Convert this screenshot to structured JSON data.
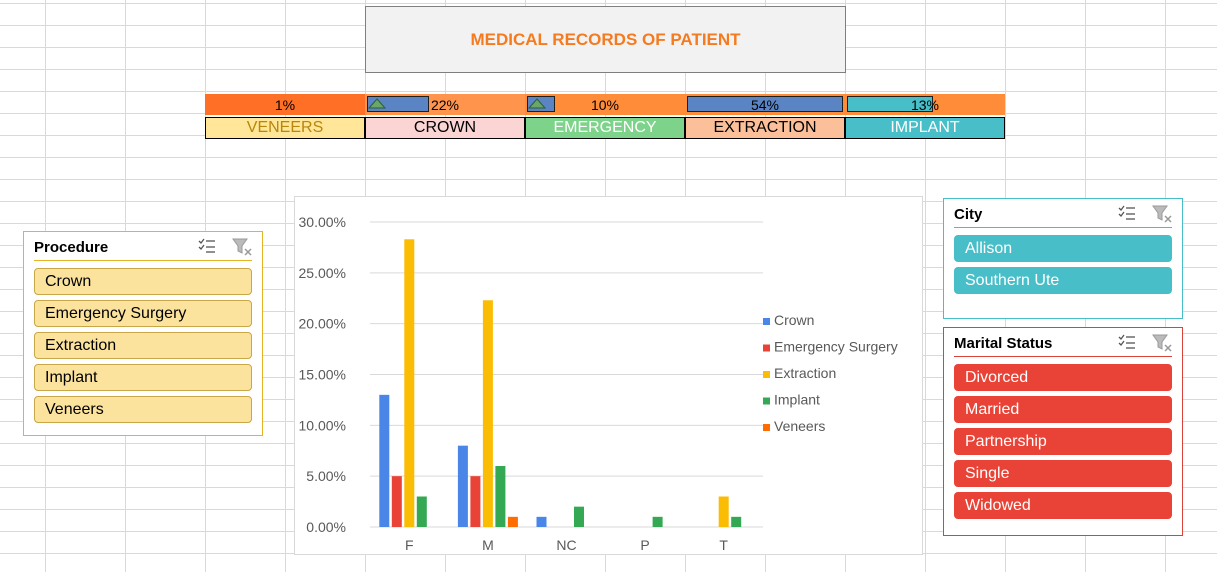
{
  "title": "MEDICAL RECORDS OF PATIENT",
  "kpis": [
    {
      "percent_label": "1%",
      "bar_fraction": 0,
      "label": "VENEERS",
      "row_bg": "#ff6f26",
      "label_bg": "#ffe699",
      "label_color": "#b8860b",
      "trend_icon": false
    },
    {
      "percent_label": "22%",
      "bar_fraction": 0.4,
      "label": "CROWN",
      "row_bg": "#ff944d",
      "label_bg": "#fbd4d4",
      "label_color": "#000000",
      "trend_icon": true
    },
    {
      "percent_label": "10%",
      "bar_fraction": 0.18,
      "label": "EMERGENCY",
      "row_bg": "#ff8c38",
      "label_bg": "#7ed38b",
      "label_color": "#ffffff",
      "trend_icon": true
    },
    {
      "percent_label": "54%",
      "bar_fraction": 1.0,
      "label": "EXTRACTION",
      "row_bg": "#ff8c38",
      "label_bg": "#fbbf99",
      "label_color": "#000000",
      "trend_icon": false
    },
    {
      "percent_label": "13%",
      "bar_fraction": 0.55,
      "label": "IMPLANT",
      "row_bg": "#ff8c38",
      "label_bg": "#47bec8",
      "label_color": "#ffffff",
      "trend_icon": false
    }
  ],
  "slicers": {
    "procedure": {
      "title": "Procedure",
      "items": [
        "Crown",
        "Emergency Surgery",
        "Extraction",
        "Implant",
        "Veneers"
      ],
      "border_color": "#e6b422",
      "item_bg": "#fbe29d",
      "item_text": "#000000"
    },
    "city": {
      "title": "City",
      "items": [
        "Allison",
        "Southern Ute"
      ],
      "border_color": "#47bec8",
      "item_bg": "#47bec8",
      "item_text": "#ffffff"
    },
    "marital": {
      "title": "Marital Status",
      "items": [
        "Divorced",
        "Married",
        "Partnership",
        "Single",
        "Widowed"
      ],
      "border_color": "#d9433a",
      "item_bg": "#e84336",
      "item_text": "#ffffff"
    }
  },
  "icons": {
    "multi_select": "multi-select-icon",
    "clear_filter": "clear-filter-icon",
    "trend": "up-triangle-icon"
  },
  "chart_data": {
    "type": "bar",
    "categories": [
      "F",
      "M",
      "NC",
      "P",
      "T"
    ],
    "series": [
      {
        "name": "Crown",
        "color": "#4a86e8",
        "values": [
          13,
          8,
          1,
          0,
          0
        ]
      },
      {
        "name": "Emergency Surgery",
        "color": "#e84336",
        "values": [
          5,
          5,
          0,
          0,
          0
        ]
      },
      {
        "name": "Extraction",
        "color": "#fbbc04",
        "values": [
          28.3,
          22.3,
          0,
          0,
          3
        ]
      },
      {
        "name": "Implant",
        "color": "#34a853",
        "values": [
          3,
          6,
          2,
          1,
          1
        ]
      },
      {
        "name": "Veneers",
        "color": "#ff6d01",
        "values": [
          0,
          1,
          0,
          0,
          0
        ]
      }
    ],
    "yticks": [
      "0.00%",
      "5.00%",
      "10.00%",
      "15.00%",
      "20.00%",
      "25.00%",
      "30.00%"
    ],
    "ylim": [
      0,
      30
    ],
    "legend_position": "right",
    "grid": true
  }
}
